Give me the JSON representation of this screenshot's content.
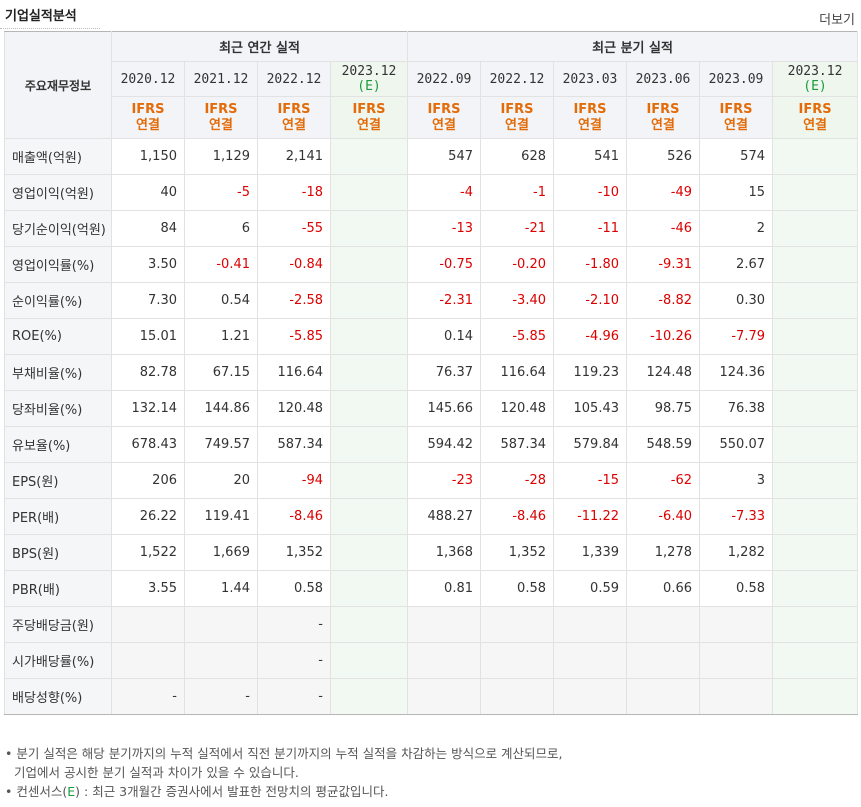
{
  "header": {
    "title": "기업실적분석",
    "more_label": "더보기"
  },
  "table": {
    "label_header": "주요재무정보",
    "group_annual": "최근 연간 실적",
    "group_quarter": "최근 분기 실적",
    "annual_periods": [
      "2020.12",
      "2021.12",
      "2022.12"
    ],
    "annual_est_period": "2023.12",
    "quarter_periods": [
      "2022.09",
      "2022.12",
      "2023.03",
      "2023.06",
      "2023.09"
    ],
    "quarter_est_period": "2023.12",
    "est_mark": "(E)",
    "ifrs_line1": "IFRS",
    "ifrs_line2": "연결",
    "rows": [
      {
        "label": "매출액(억원)",
        "annual": [
          "1,150",
          "1,129",
          "2,141",
          ""
        ],
        "quarter": [
          "547",
          "628",
          "541",
          "526",
          "574",
          ""
        ]
      },
      {
        "label": "영업이익(억원)",
        "annual": [
          "40",
          "-5",
          "-18",
          ""
        ],
        "quarter": [
          "-4",
          "-1",
          "-10",
          "-49",
          "15",
          ""
        ]
      },
      {
        "label": "당기순이익(억원)",
        "annual": [
          "84",
          "6",
          "-55",
          ""
        ],
        "quarter": [
          "-13",
          "-21",
          "-11",
          "-46",
          "2",
          ""
        ]
      },
      {
        "label": "영업이익률(%)",
        "annual": [
          "3.50",
          "-0.41",
          "-0.84",
          ""
        ],
        "quarter": [
          "-0.75",
          "-0.20",
          "-1.80",
          "-9.31",
          "2.67",
          ""
        ]
      },
      {
        "label": "순이익률(%)",
        "annual": [
          "7.30",
          "0.54",
          "-2.58",
          ""
        ],
        "quarter": [
          "-2.31",
          "-3.40",
          "-2.10",
          "-8.82",
          "0.30",
          ""
        ]
      },
      {
        "label": "ROE(%)",
        "annual": [
          "15.01",
          "1.21",
          "-5.85",
          ""
        ],
        "quarter": [
          "0.14",
          "-5.85",
          "-4.96",
          "-10.26",
          "-7.79",
          ""
        ]
      },
      {
        "label": "부채비율(%)",
        "annual": [
          "82.78",
          "67.15",
          "116.64",
          ""
        ],
        "quarter": [
          "76.37",
          "116.64",
          "119.23",
          "124.48",
          "124.36",
          ""
        ]
      },
      {
        "label": "당좌비율(%)",
        "annual": [
          "132.14",
          "144.86",
          "120.48",
          ""
        ],
        "quarter": [
          "145.66",
          "120.48",
          "105.43",
          "98.75",
          "76.38",
          ""
        ]
      },
      {
        "label": "유보율(%)",
        "annual": [
          "678.43",
          "749.57",
          "587.34",
          ""
        ],
        "quarter": [
          "594.42",
          "587.34",
          "579.84",
          "548.59",
          "550.07",
          ""
        ]
      },
      {
        "label": "EPS(원)",
        "annual": [
          "206",
          "20",
          "-94",
          ""
        ],
        "quarter": [
          "-23",
          "-28",
          "-15",
          "-62",
          "3",
          ""
        ]
      },
      {
        "label": "PER(배)",
        "annual": [
          "26.22",
          "119.41",
          "-8.46",
          ""
        ],
        "quarter": [
          "488.27",
          "-8.46",
          "-11.22",
          "-6.40",
          "-7.33",
          ""
        ]
      },
      {
        "label": "BPS(원)",
        "annual": [
          "1,522",
          "1,669",
          "1,352",
          ""
        ],
        "quarter": [
          "1,368",
          "1,352",
          "1,339",
          "1,278",
          "1,282",
          ""
        ]
      },
      {
        "label": "PBR(배)",
        "annual": [
          "3.55",
          "1.44",
          "0.58",
          ""
        ],
        "quarter": [
          "0.81",
          "0.58",
          "0.59",
          "0.66",
          "0.58",
          ""
        ]
      },
      {
        "label": "주당배당금(원)",
        "annual": [
          "",
          "",
          "-",
          ""
        ],
        "quarter": [
          "",
          "",
          "",
          "",
          "",
          ""
        ]
      },
      {
        "label": "시가배당률(%)",
        "annual": [
          "",
          "",
          "-",
          ""
        ],
        "quarter": [
          "",
          "",
          "",
          "",
          "",
          ""
        ]
      },
      {
        "label": "배당성향(%)",
        "annual": [
          "-",
          "-",
          "-",
          ""
        ],
        "quarter": [
          "",
          "",
          "",
          "",
          "",
          ""
        ]
      }
    ]
  },
  "notes": {
    "line1": "분기 실적은 해당 분기까지의 누적 실적에서 직전 분기까지의 누적 실적을 차감하는 방식으로 계산되므로,",
    "line2": "기업에서 공시한 분기 실적과 차이가 있을 수 있습니다.",
    "line3_prefix": "컨센서스(",
    "line3_mark": "E",
    "line3_suffix": ") : 최근 3개월간 증권사에서 발표한 전망치의 평균값입니다.",
    "bullet": "•"
  }
}
